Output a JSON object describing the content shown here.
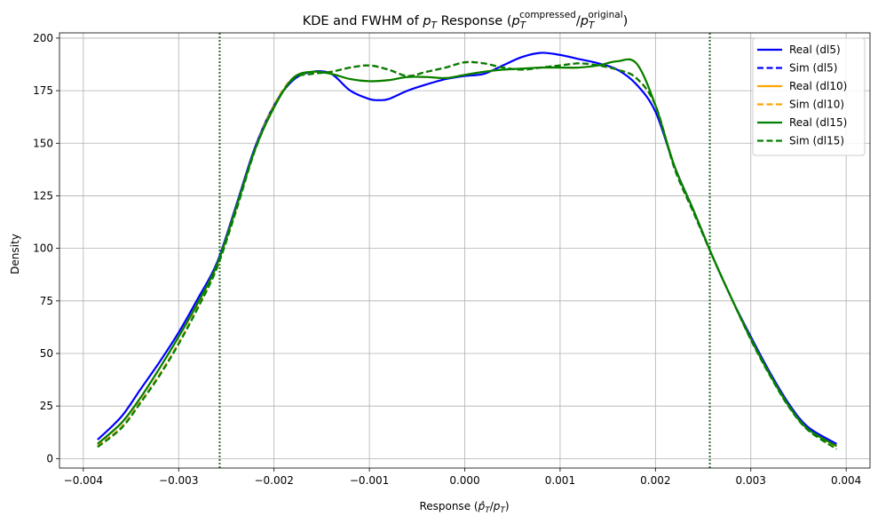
{
  "chart_data": {
    "type": "line",
    "title": {
      "prefix": "KDE and FWHM of ",
      "pT_main": "p",
      "pT_sub": "T",
      "middle": " Response (",
      "num_main": "p",
      "num_sub": "T",
      "num_sup": "compressed",
      "slash": "/",
      "den_main": "p",
      "den_sub": "T",
      "den_sup": "original",
      "suffix": ")"
    },
    "xlabel": {
      "prefix": "Response (",
      "p_hat": "p̂",
      "sub1": "T",
      "slash": "/",
      "p": "p",
      "sub2": "T",
      "suffix": ")"
    },
    "ylabel": "Density",
    "xlim": [
      -0.00425,
      0.00425
    ],
    "ylim": [
      -4.5,
      202.5
    ],
    "xticks": [
      -0.004,
      -0.003,
      -0.002,
      -0.001,
      0.0,
      0.001,
      0.002,
      0.003,
      0.004
    ],
    "xtick_labels": [
      "−0.004",
      "−0.003",
      "−0.002",
      "−0.001",
      "0.000",
      "0.001",
      "0.002",
      "0.003",
      "0.004"
    ],
    "yticks": [
      0,
      25,
      50,
      75,
      100,
      125,
      150,
      175,
      200
    ],
    "ytick_labels": [
      "0",
      "25",
      "50",
      "75",
      "100",
      "125",
      "150",
      "175",
      "200"
    ],
    "grid": true,
    "legend_position": "top-right",
    "vlines": [
      {
        "x": -0.00257,
        "color": "#2e6b2e",
        "style": "dotted"
      },
      {
        "x": 0.00257,
        "color": "#2e6b2e",
        "style": "dotted"
      }
    ],
    "series": [
      {
        "name": "Real (dl5)",
        "color": "#0000ff",
        "style": "solid",
        "x": [
          -0.00385,
          -0.0036,
          -0.0034,
          -0.0032,
          -0.003,
          -0.0028,
          -0.0026,
          -0.0024,
          -0.0022,
          -0.002,
          -0.0018,
          -0.0016,
          -0.0014,
          -0.0012,
          -0.001,
          -0.0009,
          -0.0008,
          -0.0006,
          -0.0004,
          -0.0002,
          0.0,
          0.0002,
          0.0004,
          0.0006,
          0.0008,
          0.001,
          0.0012,
          0.0014,
          0.0016,
          0.0018,
          0.002,
          0.0022,
          0.0024,
          0.0026,
          0.0028,
          0.003,
          0.0032,
          0.0034,
          0.0036,
          0.0039
        ],
        "y": [
          9,
          20,
          33,
          46,
          60,
          76,
          93,
          120,
          148,
          168,
          180,
          184,
          183,
          175,
          171,
          170.5,
          171,
          175,
          178,
          180.5,
          182,
          183,
          187,
          191,
          193,
          192,
          190,
          188,
          185,
          178,
          165,
          139,
          118,
          96,
          76,
          58,
          41,
          26,
          15,
          7
        ]
      },
      {
        "name": "Sim (dl5)",
        "color": "#0000ff",
        "style": "dashed",
        "x": [
          -0.00385,
          -0.0036,
          -0.0034,
          -0.0032,
          -0.003,
          -0.0028,
          -0.0026,
          -0.0024,
          -0.0022,
          -0.002,
          -0.0018,
          -0.0016,
          -0.0014,
          -0.0012,
          -0.001,
          -0.0008,
          -0.0006,
          -0.0004,
          -0.0002,
          0.0,
          0.0002,
          0.0004,
          0.0006,
          0.0008,
          0.001,
          0.0012,
          0.0014,
          0.0016,
          0.0018,
          0.002,
          0.0022,
          0.0024,
          0.0026,
          0.0028,
          0.003,
          0.0032,
          0.0034,
          0.0036,
          0.0039
        ],
        "y": [
          6,
          15,
          27,
          40,
          55,
          72,
          91,
          118,
          147,
          168,
          181,
          183,
          184,
          186,
          187,
          185,
          182,
          184,
          186,
          188.5,
          188,
          186,
          185,
          186,
          187,
          188,
          187,
          185,
          181,
          168,
          138,
          117,
          96,
          76,
          57,
          40,
          25,
          14,
          5
        ]
      },
      {
        "name": "Real (dl10)",
        "color": "#ffa500",
        "style": "solid",
        "x": [
          -0.00385,
          -0.0036,
          -0.0034,
          -0.0032,
          -0.003,
          -0.0028,
          -0.0026,
          -0.0024,
          -0.0022,
          -0.002,
          -0.0018,
          -0.0016,
          -0.0014,
          -0.0012,
          -0.001,
          -0.0008,
          -0.0006,
          -0.0004,
          -0.0002,
          0.0,
          0.0002,
          0.0004,
          0.0006,
          0.0008,
          0.001,
          0.0012,
          0.0014,
          0.0016,
          0.0018,
          0.002,
          0.0022,
          0.0024,
          0.0026,
          0.0028,
          0.003,
          0.0032,
          0.0034,
          0.0036,
          0.0039
        ],
        "y": [
          7,
          17,
          29,
          43,
          58,
          74,
          92,
          119,
          147,
          167,
          181,
          184,
          183,
          180.5,
          179.5,
          180,
          181.5,
          181.5,
          181,
          182.5,
          184,
          185,
          185.5,
          186,
          186,
          186,
          187,
          189,
          188,
          168,
          139,
          118,
          96,
          76,
          57,
          40,
          25,
          14,
          6
        ]
      },
      {
        "name": "Sim (dl10)",
        "color": "#ffa500",
        "style": "dashed",
        "x": [
          -0.00385,
          -0.0036,
          -0.0034,
          -0.0032,
          -0.003,
          -0.0028,
          -0.0026,
          -0.0024,
          -0.0022,
          -0.002,
          -0.0018,
          -0.0016,
          -0.0014,
          -0.0012,
          -0.001,
          -0.0008,
          -0.0006,
          -0.0004,
          -0.0002,
          0.0,
          0.0002,
          0.0004,
          0.0006,
          0.0008,
          0.001,
          0.0012,
          0.0014,
          0.0016,
          0.0018,
          0.002,
          0.0022,
          0.0024,
          0.0026,
          0.0028,
          0.003,
          0.0032,
          0.0034,
          0.0036,
          0.0039
        ],
        "y": [
          6,
          15,
          27,
          40,
          55,
          72,
          91,
          118,
          147,
          168,
          181,
          183,
          184,
          186,
          187,
          185,
          182,
          184,
          186,
          188.5,
          188,
          186,
          185,
          186,
          187,
          188,
          187,
          185,
          181,
          168,
          138,
          117,
          96,
          76,
          57,
          40,
          25,
          14,
          5
        ]
      },
      {
        "name": "Real (dl15)",
        "color": "#008000",
        "style": "solid",
        "x": [
          -0.00385,
          -0.0036,
          -0.0034,
          -0.0032,
          -0.003,
          -0.0028,
          -0.0026,
          -0.0024,
          -0.0022,
          -0.002,
          -0.0018,
          -0.0016,
          -0.0014,
          -0.0012,
          -0.001,
          -0.0008,
          -0.0006,
          -0.0004,
          -0.0002,
          0.0,
          0.0002,
          0.0004,
          0.0006,
          0.0008,
          0.001,
          0.0012,
          0.0014,
          0.0016,
          0.0018,
          0.002,
          0.0022,
          0.0024,
          0.0026,
          0.0028,
          0.003,
          0.0032,
          0.0034,
          0.0036,
          0.0039
        ],
        "y": [
          7,
          17,
          29,
          43,
          58,
          74,
          92,
          119,
          147,
          167,
          181,
          184,
          183,
          180.5,
          179.5,
          180,
          181.5,
          181.5,
          181,
          182.5,
          184,
          185,
          185.5,
          186,
          186,
          186,
          187,
          189,
          188,
          168,
          139,
          118,
          96,
          76,
          57,
          40,
          25,
          14,
          6
        ]
      },
      {
        "name": "Sim (dl15)",
        "color": "#008000",
        "style": "dashed",
        "x": [
          -0.00385,
          -0.0036,
          -0.0034,
          -0.0032,
          -0.003,
          -0.0028,
          -0.0026,
          -0.0024,
          -0.0022,
          -0.002,
          -0.0018,
          -0.0016,
          -0.0014,
          -0.0012,
          -0.001,
          -0.0008,
          -0.0006,
          -0.0004,
          -0.0002,
          0.0,
          0.0002,
          0.0004,
          0.0006,
          0.0008,
          0.001,
          0.0012,
          0.0014,
          0.0016,
          0.0018,
          0.002,
          0.0022,
          0.0024,
          0.0026,
          0.0028,
          0.003,
          0.0032,
          0.0034,
          0.0036,
          0.0039
        ],
        "y": [
          5.5,
          14.5,
          26.5,
          39.5,
          54.5,
          71.5,
          90.5,
          117.5,
          146.5,
          167.5,
          180.5,
          183,
          184,
          186,
          187,
          185,
          182,
          184,
          186,
          188.5,
          188,
          186,
          185,
          186,
          187,
          188,
          187,
          185,
          181,
          168,
          138,
          117,
          96,
          76,
          56.5,
          39.5,
          24.5,
          13.5,
          4.5
        ]
      }
    ]
  }
}
